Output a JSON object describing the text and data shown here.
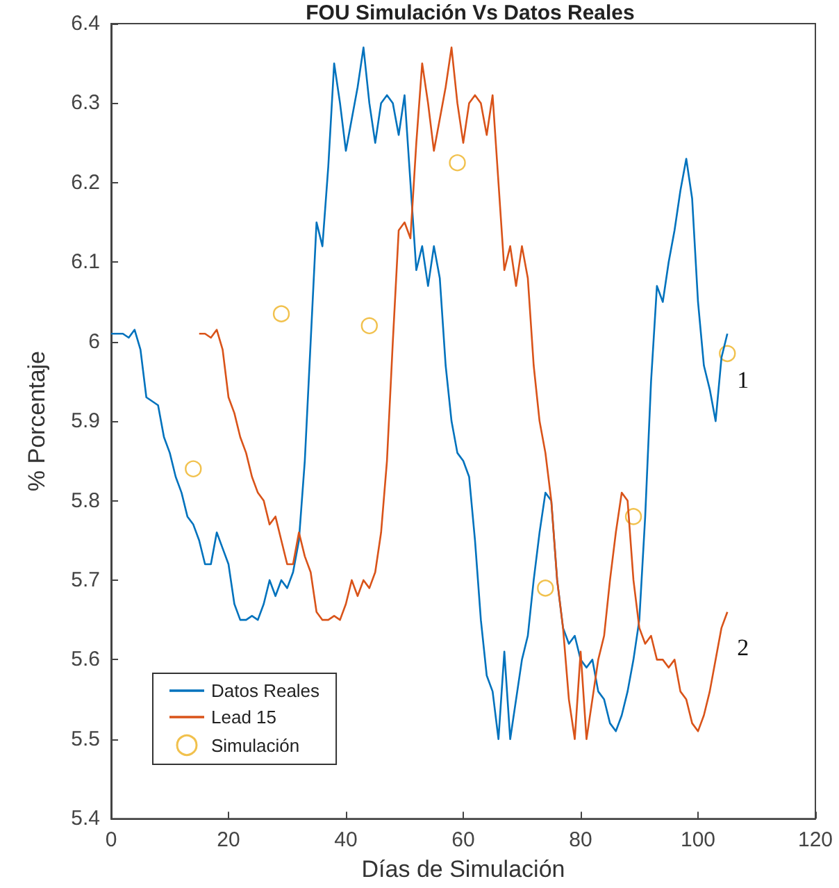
{
  "chart_data": {
    "type": "line",
    "title": "FOU Simulación Vs Datos Reales",
    "xlabel": "Días de Simulación",
    "ylabel": "% Porcentaje",
    "xlim": [
      0,
      120
    ],
    "xticks": [
      0,
      20,
      40,
      60,
      80,
      100,
      120
    ],
    "ylim": [
      5.4,
      6.4
    ],
    "yticks": [
      5.4,
      5.5,
      5.6,
      5.7,
      5.8,
      5.9,
      6,
      6.1,
      6.2,
      6.3,
      6.4
    ],
    "grid": false,
    "legend": "bottom left",
    "series": [
      {
        "name": "Datos Reales",
        "marker": "none",
        "color": "#0072bd",
        "x": [
          0,
          2,
          3,
          4,
          5,
          6,
          8,
          9,
          10,
          11,
          12,
          13,
          14,
          15,
          16,
          17,
          18,
          19,
          20,
          21,
          22,
          23,
          24,
          25,
          26,
          27,
          28,
          29,
          30,
          31,
          32,
          33,
          34,
          35,
          36,
          37,
          38,
          39,
          40,
          41,
          42,
          43,
          44,
          45,
          46,
          47,
          48,
          49,
          50,
          51,
          52,
          53,
          54,
          55,
          56,
          57,
          58,
          59,
          60,
          61,
          62,
          63,
          64,
          65,
          66,
          67,
          68,
          69,
          70,
          71,
          72,
          73,
          74,
          75,
          76,
          77,
          78,
          79,
          80,
          81,
          82,
          83,
          84,
          85,
          86,
          87,
          88,
          89,
          90,
          91,
          92,
          93,
          94,
          95,
          96,
          97,
          98,
          99,
          100,
          101,
          102,
          103,
          104,
          105
        ],
        "values": [
          6.01,
          6.01,
          6.005,
          6.015,
          5.99,
          5.93,
          5.92,
          5.88,
          5.86,
          5.83,
          5.81,
          5.78,
          5.77,
          5.75,
          5.72,
          5.72,
          5.76,
          5.74,
          5.72,
          5.67,
          5.65,
          5.65,
          5.655,
          5.65,
          5.67,
          5.7,
          5.68,
          5.7,
          5.69,
          5.71,
          5.75,
          5.85,
          6,
          6.15,
          6.12,
          6.22,
          6.35,
          6.3,
          6.24,
          6.28,
          6.32,
          6.37,
          6.3,
          6.25,
          6.3,
          6.31,
          6.3,
          6.26,
          6.31,
          6.2,
          6.09,
          6.12,
          6.07,
          6.12,
          6.08,
          5.97,
          5.9,
          5.86,
          5.85,
          5.83,
          5.75,
          5.65,
          5.58,
          5.56,
          5.5,
          5.61,
          5.5,
          5.55,
          5.6,
          5.63,
          5.7,
          5.76,
          5.81,
          5.8,
          5.7,
          5.64,
          5.62,
          5.63,
          5.6,
          5.59,
          5.6,
          5.56,
          5.55,
          5.52,
          5.51,
          5.53,
          5.56,
          5.6,
          5.65,
          5.78,
          5.95,
          6.07,
          6.05,
          6.1,
          6.14,
          6.19,
          6.23,
          6.18,
          6.05,
          5.97,
          5.94,
          5.9,
          5.98,
          6.01
        ]
      },
      {
        "name": "Lead 15",
        "marker": "none",
        "color": "#d95319",
        "x": [
          15,
          16,
          17,
          18,
          19,
          20,
          21,
          22,
          23,
          24,
          25,
          26,
          27,
          28,
          29,
          30,
          31,
          32,
          33,
          34,
          35,
          36,
          37,
          38,
          39,
          40,
          41,
          42,
          43,
          44,
          45,
          46,
          47,
          48,
          49,
          50,
          51,
          52,
          53,
          54,
          55,
          56,
          57,
          58,
          59,
          60,
          61,
          62,
          63,
          64,
          65,
          66,
          67,
          68,
          69,
          70,
          71,
          72,
          73,
          74,
          75,
          76,
          77,
          78,
          79,
          80,
          81,
          82,
          83,
          84,
          85,
          86,
          87,
          88,
          89,
          90,
          91,
          92,
          93,
          94,
          95,
          96,
          97,
          98,
          99,
          100,
          101,
          102,
          103,
          104,
          105
        ],
        "values": [
          6.01,
          6.01,
          6.005,
          6.015,
          5.99,
          5.93,
          5.91,
          5.88,
          5.86,
          5.83,
          5.81,
          5.8,
          5.77,
          5.78,
          5.75,
          5.72,
          5.72,
          5.76,
          5.73,
          5.71,
          5.66,
          5.65,
          5.65,
          5.655,
          5.65,
          5.67,
          5.7,
          5.68,
          5.7,
          5.69,
          5.71,
          5.76,
          5.85,
          6,
          6.14,
          6.15,
          6.13,
          6.25,
          6.35,
          6.3,
          6.24,
          6.28,
          6.32,
          6.37,
          6.3,
          6.25,
          6.3,
          6.31,
          6.3,
          6.26,
          6.31,
          6.2,
          6.09,
          6.12,
          6.07,
          6.12,
          6.08,
          5.97,
          5.9,
          5.86,
          5.8,
          5.7,
          5.64,
          5.55,
          5.5,
          5.61,
          5.5,
          5.55,
          5.6,
          5.63,
          5.7,
          5.76,
          5.81,
          5.8,
          5.7,
          5.64,
          5.62,
          5.63,
          5.6,
          5.6,
          5.59,
          5.6,
          5.56,
          5.55,
          5.52,
          5.51,
          5.53,
          5.56,
          5.6,
          5.64,
          5.66
        ]
      },
      {
        "name": "Simulación",
        "type": "scatter",
        "marker": "circle",
        "color": "#edb120",
        "x": [
          14,
          29,
          44,
          59,
          74,
          89,
          105
        ],
        "values": [
          5.84,
          6.035,
          6.02,
          6.225,
          5.69,
          5.78,
          5.985
        ]
      }
    ],
    "annotations": [
      "1",
      "2"
    ]
  }
}
